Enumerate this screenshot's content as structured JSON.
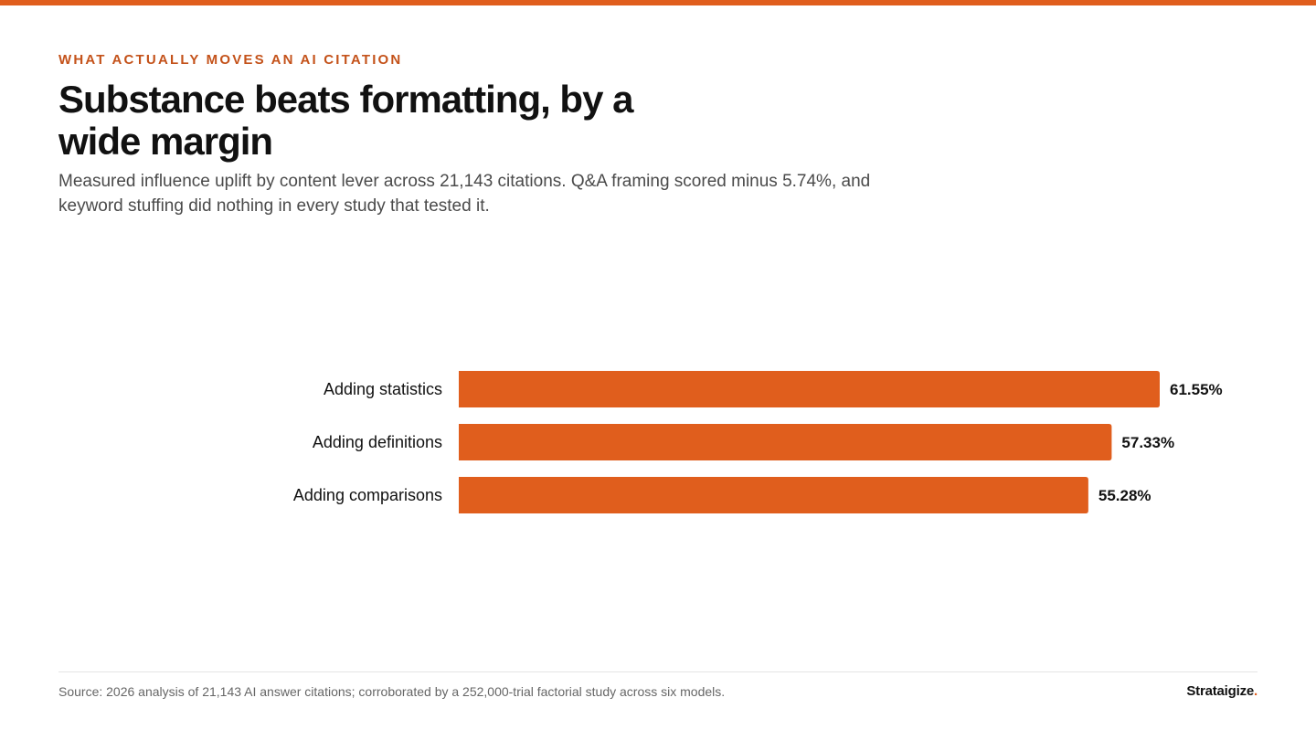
{
  "header": {
    "eyebrow": "WHAT ACTUALLY MOVES AN AI CITATION",
    "title": "Substance beats formatting, by a wide margin",
    "subtitle": "Measured influence uplift by content lever across 21,143 citations. Q&A framing scored minus 5.74%, and keyword stuffing did nothing in every study that tested it."
  },
  "chart_data": {
    "type": "bar",
    "orientation": "horizontal",
    "categories": [
      "Adding statistics",
      "Adding definitions",
      "Adding comparisons"
    ],
    "values": [
      61.55,
      57.33,
      55.28
    ],
    "value_labels": [
      "61.55%",
      "57.33%",
      "55.28%"
    ],
    "xlim": [
      0,
      61.55
    ],
    "grid": false,
    "bar_color": "#e05e1d"
  },
  "footer": {
    "source": "Source: 2026 analysis of 21,143 AI answer citations; corroborated by a 252,000-trial factorial study across six models.",
    "brand_name": "Strataigize",
    "brand_dot": "."
  },
  "colors": {
    "accent": "#e05e1d",
    "eyebrow": "#c4521a",
    "text": "#111111",
    "muted": "#666666"
  }
}
